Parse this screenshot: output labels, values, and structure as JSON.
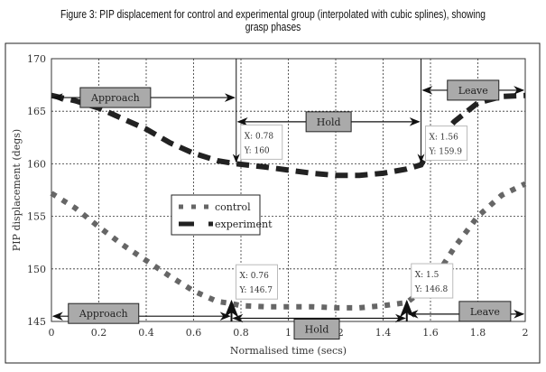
{
  "caption": "Figure 3: PIP displacement for control and experimental group (interpolated with cubic splines), showing grasp phases",
  "chart_data": {
    "type": "line",
    "title": "Figure 3: PIP displacement for control and experimental group (interpolated with cubic splines), showing grasp phases",
    "xlabel": "Normalised time (secs)",
    "ylabel": "PIP displacement (degs)",
    "xlim": [
      0,
      2
    ],
    "ylim": [
      145,
      170
    ],
    "xticks": [
      "0",
      "0.2",
      "0.4",
      "0.6",
      "0.8",
      "1",
      "1.2",
      "1.4",
      "1.6",
      "1.8",
      "2"
    ],
    "yticks": [
      "145",
      "150",
      "155",
      "160",
      "165",
      "170"
    ],
    "grid": true,
    "legend": {
      "placement": "center-left",
      "entries": [
        "control",
        "experiment"
      ]
    },
    "series": [
      {
        "name": "control",
        "style": "dotted",
        "x": [
          0,
          0.1,
          0.2,
          0.3,
          0.4,
          0.5,
          0.6,
          0.7,
          0.76,
          0.8,
          0.9,
          1.0,
          1.1,
          1.2,
          1.3,
          1.4,
          1.5,
          1.6,
          1.7,
          1.8,
          1.9,
          2.0
        ],
        "y": [
          157.2,
          155.8,
          154,
          152.3,
          150.8,
          149.3,
          147.9,
          146.9,
          146.7,
          146.5,
          146.4,
          146.4,
          146.4,
          146.3,
          146.3,
          146.5,
          146.8,
          148.5,
          152,
          155,
          157,
          158.1
        ]
      },
      {
        "name": "experiment",
        "style": "dashed",
        "x": [
          0,
          0.1,
          0.2,
          0.3,
          0.4,
          0.5,
          0.6,
          0.7,
          0.78,
          0.9,
          1.0,
          1.1,
          1.2,
          1.3,
          1.4,
          1.5,
          1.56,
          1.6,
          1.7,
          1.8,
          1.9,
          2.0
        ],
        "y": [
          166.5,
          166,
          165.3,
          164.3,
          163.3,
          162,
          161,
          160.3,
          160,
          159.7,
          159.4,
          159.1,
          158.9,
          158.9,
          159.1,
          159.5,
          159.9,
          161.5,
          164,
          165.8,
          166.4,
          166.5
        ]
      }
    ],
    "datatips": [
      {
        "label": "X: 0.78",
        "label2": "Y: 160",
        "x": 0.78,
        "y": 160
      },
      {
        "label": "X: 1.56",
        "label2": "Y: 159.9",
        "x": 1.56,
        "y": 159.9
      },
      {
        "label": "X: 0.76",
        "label2": "Y: 146.7",
        "x": 0.76,
        "y": 146.7
      },
      {
        "label": "X: 1.5",
        "label2": "Y: 146.8",
        "x": 1.5,
        "y": 146.8
      }
    ],
    "phases": [
      {
        "label": "Approach",
        "from": 0,
        "to": 0.78,
        "y": 166.3,
        "lx": 0.27
      },
      {
        "label": "Hold",
        "from": 0.78,
        "to": 1.56,
        "y": 164,
        "lx": 1.17
      },
      {
        "label": "Leave",
        "from": 1.56,
        "to": 2,
        "y": 167,
        "lx": 1.78
      },
      {
        "label": "Approach",
        "from": 0,
        "to": 0.76,
        "y": 145.5,
        "lx": 0.22
      },
      {
        "label": "Hold",
        "from": 0.76,
        "to": 1.5,
        "y": 145.3,
        "lx": 1.12
      },
      {
        "label": "Leave",
        "from": 1.5,
        "to": 2,
        "y": 145.7,
        "lx": 1.83
      }
    ]
  }
}
